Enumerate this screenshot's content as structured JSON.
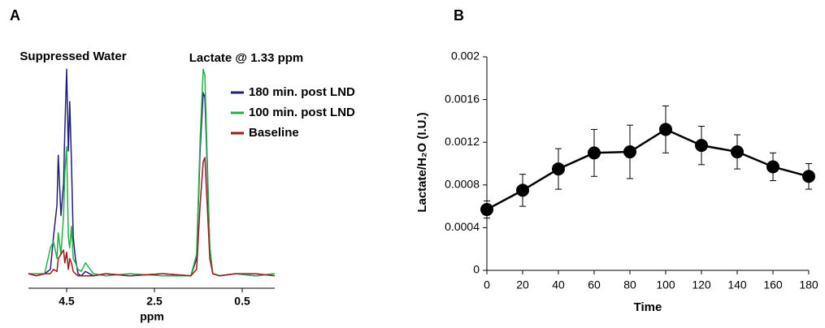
{
  "chart_data": [
    {
      "type": "line",
      "panel": "A",
      "annotations": [
        "Suppressed Water",
        "Lactate @ 1.33 ppm"
      ],
      "xlabel": "ppm",
      "xlim": [
        5.37,
        -0.24
      ],
      "xticks": [
        4.5,
        2.5,
        0.5
      ],
      "ylim": [
        0,
        100
      ],
      "legend": "upper right",
      "x": [
        5.37,
        5.19,
        5.0,
        4.87,
        4.8,
        4.72,
        4.69,
        4.63,
        4.57,
        4.54,
        4.5,
        4.46,
        4.43,
        4.39,
        4.35,
        4.3,
        4.24,
        4.17,
        4.07,
        3.89,
        3.61,
        3.06,
        2.31,
        1.67,
        1.54,
        1.46,
        1.39,
        1.35,
        1.31,
        1.24,
        1.17,
        1.02,
        0.65,
        0.19,
        -0.24
      ],
      "series": [
        {
          "name": "180 min. post LND",
          "color": "#1f1f7a",
          "values": [
            3,
            2,
            3,
            5,
            20,
            35,
            58,
            30,
            45,
            70,
            98,
            60,
            83,
            55,
            20,
            10,
            3,
            2,
            4,
            2,
            3,
            2,
            3,
            2,
            10,
            60,
            87,
            85,
            60,
            15,
            3,
            2,
            3,
            2,
            3
          ]
        },
        {
          "name": "100 min. post LND",
          "color": "#22b04a",
          "values": [
            3,
            3,
            3,
            15,
            18,
            10,
            22,
            12,
            30,
            50,
            62,
            20,
            15,
            25,
            10,
            8,
            5,
            4,
            8,
            3,
            2,
            3,
            2,
            2,
            12,
            65,
            98,
            95,
            65,
            15,
            3,
            2,
            3,
            2,
            3
          ]
        },
        {
          "name": "Baseline",
          "color": "#a01818",
          "values": [
            3,
            2,
            3,
            3,
            5,
            4,
            10,
            12,
            14,
            8,
            13,
            5,
            10,
            8,
            4,
            3,
            2,
            2,
            2,
            2,
            3,
            2,
            3,
            2,
            5,
            35,
            55,
            57,
            40,
            10,
            3,
            2,
            3,
            3,
            2
          ]
        }
      ]
    },
    {
      "type": "line",
      "panel": "B",
      "xlabel": "Time",
      "ylabel": "Lactate/H₂O (I.U.)",
      "xlim": [
        0,
        180
      ],
      "xticks": [
        0,
        20,
        40,
        60,
        80,
        100,
        120,
        140,
        160,
        180
      ],
      "ylim": [
        0,
        0.002
      ],
      "yticks": [
        0,
        0.0004,
        0.0008,
        0.0012,
        0.0016,
        0.002
      ],
      "color": "#000000",
      "x": [
        0,
        20,
        40,
        60,
        80,
        100,
        120,
        140,
        160,
        180
      ],
      "values": [
        0.00057,
        0.00075,
        0.00095,
        0.0011,
        0.00111,
        0.00132,
        0.00117,
        0.00111,
        0.00097,
        0.00088
      ],
      "errors": [
        8e-05,
        0.00015,
        0.00019,
        0.00022,
        0.00025,
        0.00022,
        0.00018,
        0.00016,
        0.00013,
        0.00012
      ]
    }
  ]
}
